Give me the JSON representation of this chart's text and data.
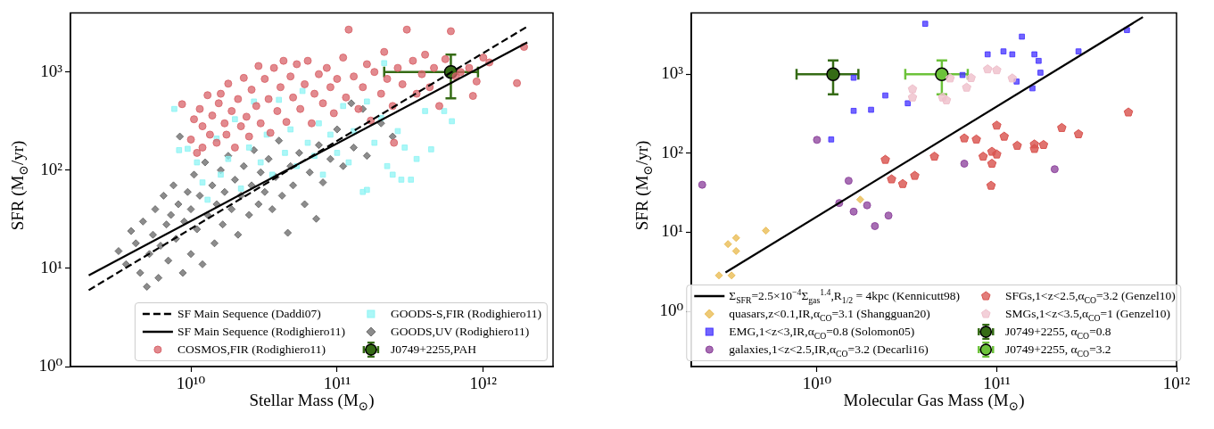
{
  "chart_data": [
    {
      "type": "scatter",
      "xlabel": "Stellar Mass (M$_{⊙}$)",
      "ylabel": "SFR (M$_{⊙}$/yr)",
      "log": "xy",
      "grid": false,
      "legend": "bottom right",
      "xlim": [
        1500000000.0,
        3000000000000.0
      ],
      "ylim": [
        1,
        4000
      ],
      "xticks": [
        {
          "value": 10000000000.0,
          "label": "10¹⁰"
        },
        {
          "value": 100000000000.0,
          "label": "10¹¹"
        },
        {
          "value": 1000000000000.0,
          "label": "10¹²"
        }
      ],
      "yticks": [
        {
          "value": 1,
          "label": "10⁰"
        },
        {
          "value": 10,
          "label": "10¹"
        },
        {
          "value": 100,
          "label": "10²"
        },
        {
          "value": 1000,
          "label": "10³"
        }
      ],
      "series": [
        {
          "name": "SF Main Sequence (Daddi07)",
          "type": "line",
          "line_style": "dashed",
          "color": "#000000",
          "x": [
            2000000000.0,
            2000000000000.0
          ],
          "values": [
            6,
            2900
          ]
        },
        {
          "name": "SF Main Sequence (Rodighiero11)",
          "type": "line",
          "line_style": "solid",
          "color": "#000000",
          "x": [
            2000000000.0,
            2000000000000.0
          ],
          "values": [
            8.5,
            2000
          ]
        },
        {
          "name": "COSMOS,FIR (Rodighiero11)",
          "marker": "circle",
          "color": "#d9646a",
          "x": [
            8700000000.0,
            10000000000.0,
            11000000000.0,
            12000000000.0,
            10500000000.0,
            11500000000.0,
            12000000000.0,
            13000000000.0,
            13500000000.0,
            14000000000.0,
            15000000000.0,
            15500000000.0,
            16000000000.0,
            17000000000.0,
            17500000000.0,
            18000000000.0,
            19000000000.0,
            20000000000.0,
            21000000000.0,
            22000000000.0,
            23000000000.0,
            24000000000.0,
            25000000000.0,
            26000000000.0,
            28000000000.0,
            29000000000.0,
            30000000000.0,
            32000000000.0,
            34000000000.0,
            35000000000.0,
            37000000000.0,
            39000000000.0,
            41000000000.0,
            43000000000.0,
            45000000000.0,
            48000000000.0,
            50000000000.0,
            53000000000.0,
            56000000000.0,
            60000000000.0,
            63000000000.0,
            67000000000.0,
            70000000000.0,
            75000000000.0,
            80000000000.0,
            85000000000.0,
            90000000000.0,
            95000000000.0,
            100000000000.0,
            110000000000.0,
            115000000000.0,
            120000000000.0,
            130000000000.0,
            140000000000.0,
            150000000000.0,
            160000000000.0,
            170000000000.0,
            180000000000.0,
            200000000000.0,
            210000000000.0,
            220000000000.0,
            240000000000.0,
            260000000000.0,
            280000000000.0,
            300000000000.0,
            245000000000.0,
            330000000000.0,
            350000000000.0,
            380000000000.0,
            400000000000.0,
            430000000000.0,
            460000000000.0,
            500000000000.0,
            550000000000.0,
            600000000000.0,
            650000000000.0,
            700000000000.0,
            800000000000.0,
            900000000000.0,
            1000000000000.0,
            1100000000000.0,
            1700000000000.0,
            1900000000000.0,
            850000000000.0
          ],
          "values": [
            470,
            205,
            150,
            170,
            330,
            420,
            280,
            580,
            230,
            360,
            190,
            480,
            600,
            300,
            230,
            760,
            400,
            170,
            530,
            280,
            870,
            350,
            220,
            660,
            450,
            1150,
            300,
            850,
            530,
            240,
            1100,
            400,
            700,
            1300,
            310,
            900,
            550,
            1200,
            420,
            750,
            1300,
            300,
            600,
            950,
            480,
            1100,
            700,
            380,
            850,
            1400,
            550,
            2700,
            900,
            420,
            700,
            1200,
            320,
            1000,
            600,
            1600,
            850,
            450,
            1100,
            750,
            2700,
            190,
            1300,
            600,
            950,
            1500,
            700,
            1100,
            450,
            1350,
            2600,
            900,
            1000,
            1100,
            800,
            1400,
            1250,
            770,
            1800,
            570
          ]
        },
        {
          "name": "GOODS-S,FIR (Rodighiero11)",
          "marker": "square",
          "color": "#8ff4f4",
          "x": [
            7700000000.0,
            8300000000.0,
            9500000000.0,
            11000000000.0,
            12000000000.0,
            13000000000.0,
            15000000000.0,
            16000000000.0,
            18000000000.0,
            20000000000.0,
            22000000000.0,
            25000000000.0,
            27000000000.0,
            30000000000.0,
            33000000000.0,
            36000000000.0,
            40000000000.0,
            44000000000.0,
            48000000000.0,
            53000000000.0,
            58000000000.0,
            63000000000.0,
            70000000000.0,
            75000000000.0,
            80000000000.0,
            90000000000.0,
            100000000000.0,
            110000000000.0,
            120000000000.0,
            130000000000.0,
            150000000000.0,
            160000000000.0,
            180000000000.0,
            200000000000.0,
            220000000000.0,
            240000000000.0,
            260000000000.0,
            290000000000.0,
            320000000000.0,
            350000000000.0,
            400000000000.0,
            210000000000.0,
            160000000000.0,
            275000000000.0,
            440000000000.0,
            610000000000.0,
            540000000000.0
          ],
          "values": [
            420,
            160,
            165,
            120,
            75,
            50,
            210,
            90,
            130,
            330,
            65,
            170,
            500,
            120,
            230,
            90,
            520,
            150,
            260,
            110,
            640,
            190,
            140,
            300,
            90,
            230,
            150,
            450,
            120,
            250,
            60,
            500,
            190,
            340,
            110,
            90,
            250,
            170,
            80,
            130,
            400,
            1230,
            63,
            80,
            163,
            315,
            400
          ]
        },
        {
          "name": "GOODS,UV (Rodighiero11)",
          "marker": "diamond",
          "color": "#666666",
          "x": [
            3200000000.0,
            3600000000.0,
            3900000000.0,
            4200000000.0,
            4500000000.0,
            4700000000.0,
            5000000000.0,
            5200000000.0,
            5500000000.0,
            5700000000.0,
            6000000000.0,
            6200000000.0,
            6500000000.0,
            6800000000.0,
            7000000000.0,
            7300000000.0,
            7600000000.0,
            7900000000.0,
            8200000000.0,
            8400000000.0,
            8800000000.0,
            9000000000.0,
            9500000000.0,
            10000000000.0,
            10000000000.0,
            10500000000.0,
            11000000000.0,
            11500000000.0,
            12000000000.0,
            12500000000.0,
            13000000000.0,
            14000000000.0,
            14500000000.0,
            15000000000.0,
            16000000000.0,
            16500000000.0,
            17000000000.0,
            18000000000.0,
            19000000000.0,
            20000000000.0,
            21000000000.0,
            22000000000.0,
            23000000000.0,
            25000000000.0,
            26000000000.0,
            27000000000.0,
            29000000000.0,
            30000000000.0,
            32000000000.0,
            34000000000.0,
            36000000000.0,
            38000000000.0,
            40000000000.0,
            42000000000.0,
            46000000000.0,
            48000000000.0,
            50000000000.0,
            55000000000.0,
            60000000000.0,
            65000000000.0,
            72000000000.0,
            75000000000.0,
            80000000000.0,
            90000000000.0,
            100000000000.0,
            110000000000.0,
            125000000000.0,
            130000000000.0,
            150000000000.0,
            160000000000.0,
            200000000000.0,
            240000000000.0
          ],
          "values": [
            15,
            11,
            24,
            18,
            9,
            30,
            6.5,
            14,
            22,
            40,
            8,
            17,
            55,
            28,
            12,
            35,
            70,
            20,
            45,
            220,
            9,
            30,
            60,
            14,
            40,
            90,
            25,
            55,
            11,
            120,
            35,
            70,
            18,
            45,
            100,
            28,
            60,
            140,
            40,
            80,
            22,
            55,
            110,
            35,
            70,
            160,
            45,
            95,
            60,
            130,
            40,
            85,
            200,
            55,
            23,
            110,
            70,
            150,
            45,
            95,
            32,
            180,
            75,
            130,
            260,
            110,
            480,
            170,
            420,
            140,
            300,
            220
          ]
        },
        {
          "name": "J0749+2255,PAH",
          "marker": "circle",
          "color": "#356b15",
          "x": [
            600000000000.0
          ],
          "values": [
            1000
          ],
          "xerrors": [
            [
              210000000000.0,
              920000000000.0
            ]
          ],
          "errors": [
            [
              540,
              1500
            ]
          ]
        }
      ]
    },
    {
      "type": "scatter",
      "xlabel": "Molecular Gas Mass (M$_{⊙}$)",
      "ylabel": "SFR (M$_{⊙}$/yr)",
      "log": "xy",
      "grid": false,
      "legend": "bottom",
      "xlim": [
        2000000000.0,
        1000000000000.0
      ],
      "ylim": [
        0.2,
        6000
      ],
      "xticks": [
        {
          "value": 10000000000.0,
          "label": "10¹⁰"
        },
        {
          "value": 100000000000.0,
          "label": "10¹¹"
        },
        {
          "value": 1000000000000.0,
          "label": "10¹²"
        }
      ],
      "yticks": [
        {
          "value": 1,
          "label": "10⁰"
        },
        {
          "value": 10,
          "label": "10¹"
        },
        {
          "value": 100,
          "label": "10²"
        },
        {
          "value": 1000,
          "label": "10³"
        }
      ],
      "series": [
        {
          "name": "Σ$_{SFR}$=2.5×10$^{−4}$Σ$_{gas}$$^{1.4}$,R$_{1/2}$ = 4kpc (Kennicutt98)",
          "type": "line",
          "line_style": "solid",
          "color": "#000000",
          "x": [
            3100000000.0,
            650000000000.0
          ],
          "values": [
            3.1,
            5300
          ]
        },
        {
          "name": "quasars,z<0.1,IR,α$_{CO}$=3.1 (Shangguan20)",
          "marker": "diamond",
          "color": "#e8b84b",
          "x": [
            17400000000.0,
            5200000000.0,
            3550000000.0,
            3200000000.0,
            3550000000.0,
            2850000000.0,
            3350000000.0
          ],
          "values": [
            26,
            10.5,
            8.5,
            7.1,
            5.8,
            2.85,
            2.85
          ]
        },
        {
          "name": "EMG,1<z<3,IR,α$_{CO}$=0.8 (Solomon05)",
          "marker": "square",
          "color": "#4433ff",
          "x": [
            40000000000.0,
            138000000000.0,
            530000000000.0,
            89000000000.0,
            109000000000.0,
            122000000000.0,
            162000000000.0,
            171000000000.0,
            285000000000.0,
            175000000000.0,
            129000000000.0,
            158000000000.0,
            64500000000.0,
            16000000000.0,
            24000000000.0,
            32000000000.0,
            16000000000.0,
            20000000000.0,
            12000000000.0
          ],
          "values": [
            4360,
            3000,
            3630,
            1790,
            1950,
            1790,
            1790,
            1480,
            1950,
            1050,
            810,
            665,
            980,
            905,
            540,
            430,
            345,
            356,
            150
          ]
        },
        {
          "name": "galaxies,1<z<2.5,IR,α$_{CO}$=3.2 (Decarli16)",
          "marker": "circle",
          "color": "#8a3f9a",
          "x": [
            2300000000.0,
            10000000000.0,
            66000000000.0,
            210000000000.0,
            15000000000.0,
            13300000000.0,
            16000000000.0,
            19000000000.0,
            25000000000.0,
            21000000000.0
          ],
          "values": [
            40,
            148,
            74,
            63,
            45,
            23.5,
            18.3,
            22,
            16.3,
            12
          ]
        },
        {
          "name": "SFGs,1<z<2.5,α$_{CO}$=3.2 (Genzel10)",
          "color": "#d9534f",
          "x": [
            540000000000.0,
            100000000000.0,
            230000000000.0,
            285000000000.0,
            110000000000.0,
            66000000000.0,
            77000000000.0,
            130000000000.0,
            162000000000.0,
            182000000000.0,
            162000000000.0,
            94000000000.0,
            100000000000.0,
            84000000000.0,
            45000000000.0,
            24000000000.0,
            94000000000.0,
            35000000000.0,
            26000000000.0,
            30000000000.0,
            93000000000.0
          ],
          "values": [
            330,
            225,
            210,
            175,
            163,
            155,
            150,
            125,
            130,
            128,
            114,
            105,
            97,
            91,
            91,
            83,
            74,
            52,
            47,
            41,
            39
          ]
        },
        {
          "name": "SMGs,1<z<3.5,α$_{CO}$=1 (Genzel10)",
          "color": "#efc0cc",
          "x": [
            89000000000.0,
            100000000000.0,
            122000000000.0,
            72000000000.0,
            55000000000.0,
            34000000000.0,
            34000000000.0,
            50000000000.0,
            52500000000.0,
            68000000000.0
          ],
          "values": [
            1160,
            1130,
            890,
            900,
            890,
            650,
            510,
            510,
            470,
            680
          ]
        },
        {
          "name": "J0749+2255, α$_{CO}$=0.8",
          "marker": "circle",
          "color": "#356b15",
          "x": [
            12300000000.0
          ],
          "values": [
            1000
          ],
          "xerrors": [
            [
              7700000000.0,
              17000000000.0
            ]
          ],
          "errors": [
            [
              560,
              1500
            ]
          ]
        },
        {
          "name": "J0749+2255, α$_{CO}$=3.2",
          "marker": "circle",
          "color": "#6cc23a",
          "x": [
            49500000000.0
          ],
          "values": [
            1000
          ],
          "xerrors": [
            [
              31000000000.0,
              69000000000.0
            ]
          ],
          "errors": [
            [
              560,
              1500
            ]
          ]
        }
      ]
    }
  ]
}
